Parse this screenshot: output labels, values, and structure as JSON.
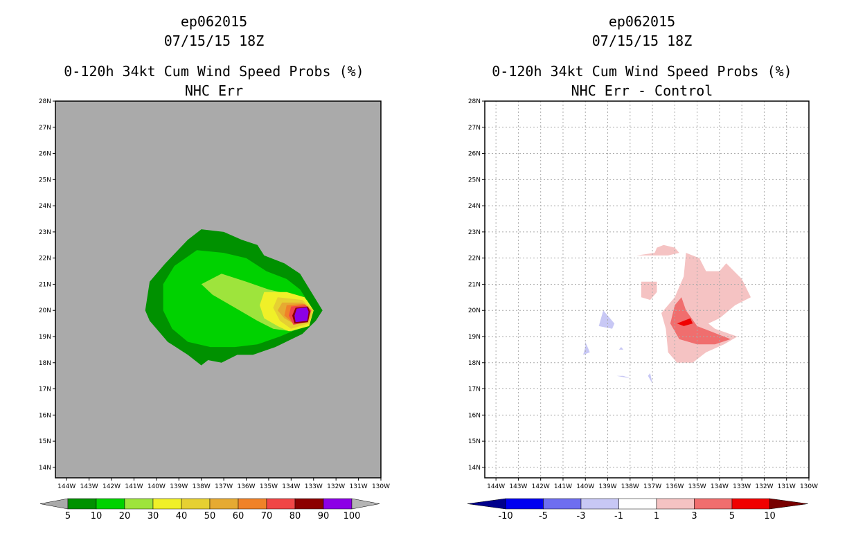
{
  "chart_data": [
    {
      "type": "heatmap",
      "storm": "ep062015",
      "datetime": "07/15/15 18Z",
      "title": "0-120h 34kt Cum Wind Speed Probs (%)",
      "subtitle": "NHC Err",
      "x_ticks": [
        "144W",
        "143W",
        "142W",
        "141W",
        "140W",
        "139W",
        "138W",
        "137W",
        "136W",
        "135W",
        "134W",
        "133W",
        "132W",
        "131W",
        "130W"
      ],
      "y_ticks": [
        "28N",
        "27N",
        "26N",
        "25N",
        "24N",
        "23N",
        "22N",
        "21N",
        "20N",
        "19N",
        "18N",
        "17N",
        "16N",
        "15N",
        "14N"
      ],
      "xlim": [
        -144.5,
        -130.0
      ],
      "ylim": [
        13.6,
        28.0
      ],
      "background_color": "#aaaaaa",
      "levels": [
        5,
        10,
        20,
        30,
        40,
        50,
        60,
        70,
        80,
        90,
        100
      ],
      "level_labels": [
        "5",
        "10",
        "20",
        "30",
        "40",
        "50",
        "60",
        "70",
        "80",
        "90",
        "100"
      ],
      "colors": [
        "#a9a9a9",
        "#009100",
        "#00d200",
        "#9ee43c",
        "#f0f028",
        "#e6d032",
        "#e6aa32",
        "#f08228",
        "#f04646",
        "#8c0000",
        "#8c00e6",
        "#b4b4b4"
      ],
      "contours": [
        {
          "min": 5,
          "points": [
            [
              -138,
              23.1
            ],
            [
              -137,
              23.0
            ],
            [
              -136.2,
              22.7
            ],
            [
              -135.5,
              22.5
            ],
            [
              -135.2,
              22.1
            ],
            [
              -134.3,
              21.8
            ],
            [
              -133.6,
              21.4
            ],
            [
              -133.1,
              20.7
            ],
            [
              -132.6,
              20.0
            ],
            [
              -132.9,
              19.6
            ],
            [
              -133.5,
              19.1
            ],
            [
              -134.7,
              18.6
            ],
            [
              -135.7,
              18.3
            ],
            [
              -136.4,
              18.3
            ],
            [
              -137.1,
              18.0
            ],
            [
              -137.7,
              18.1
            ],
            [
              -138.0,
              17.9
            ],
            [
              -138.6,
              18.3
            ],
            [
              -139.5,
              18.8
            ],
            [
              -140.3,
              19.6
            ],
            [
              -140.5,
              20.0
            ],
            [
              -140.3,
              21.1
            ],
            [
              -139.6,
              21.8
            ],
            [
              -138.6,
              22.7
            ]
          ]
        },
        {
          "min": 10,
          "points": [
            [
              -138.2,
              22.3
            ],
            [
              -137.0,
              22.2
            ],
            [
              -136.0,
              22.0
            ],
            [
              -135.1,
              21.5
            ],
            [
              -134.2,
              21.2
            ],
            [
              -133.6,
              20.8
            ],
            [
              -133.0,
              20.0
            ],
            [
              -133.4,
              19.4
            ],
            [
              -134.5,
              19.0
            ],
            [
              -135.5,
              18.7
            ],
            [
              -136.5,
              18.6
            ],
            [
              -137.6,
              18.6
            ],
            [
              -138.6,
              18.8
            ],
            [
              -139.3,
              19.3
            ],
            [
              -139.7,
              20.0
            ],
            [
              -139.7,
              21.0
            ],
            [
              -139.2,
              21.7
            ]
          ]
        },
        {
          "min": 20,
          "points": [
            [
              -137.1,
              21.4
            ],
            [
              -136.0,
              21.1
            ],
            [
              -135.0,
              20.8
            ],
            [
              -134.0,
              20.6
            ],
            [
              -133.3,
              20.4
            ],
            [
              -133.0,
              20.0
            ],
            [
              -133.2,
              19.4
            ],
            [
              -134.0,
              19.2
            ],
            [
              -134.8,
              19.3
            ],
            [
              -135.5,
              19.6
            ],
            [
              -136.5,
              20.1
            ],
            [
              -137.5,
              20.6
            ],
            [
              -138.0,
              21.0
            ]
          ]
        },
        {
          "min": 30,
          "points": [
            [
              -135.2,
              20.7
            ],
            [
              -134.2,
              20.7
            ],
            [
              -133.4,
              20.5
            ],
            [
              -133.0,
              20.0
            ],
            [
              -133.2,
              19.4
            ],
            [
              -134.1,
              19.2
            ],
            [
              -134.6,
              19.4
            ],
            [
              -135.2,
              19.7
            ],
            [
              -135.4,
              20.2
            ]
          ]
        },
        {
          "min": 40,
          "points": [
            [
              -134.6,
              20.5
            ],
            [
              -133.5,
              20.4
            ],
            [
              -133.0,
              20.0
            ],
            [
              -133.2,
              19.5
            ],
            [
              -134.0,
              19.3
            ],
            [
              -134.5,
              19.6
            ],
            [
              -134.8,
              20.1
            ]
          ]
        },
        {
          "min": 50,
          "points": [
            [
              -134.4,
              20.3
            ],
            [
              -133.5,
              20.3
            ],
            [
              -133.1,
              20.0
            ],
            [
              -133.2,
              19.6
            ],
            [
              -133.9,
              19.5
            ],
            [
              -134.3,
              19.7
            ],
            [
              -134.6,
              20.0
            ]
          ]
        },
        {
          "min": 60,
          "points": [
            [
              -134.2,
              20.2
            ],
            [
              -133.4,
              20.25
            ],
            [
              -133.1,
              20.0
            ],
            [
              -133.3,
              19.6
            ],
            [
              -133.9,
              19.5
            ],
            [
              -134.3,
              19.8
            ]
          ]
        },
        {
          "min": 70,
          "points": [
            [
              -134.0,
              20.15
            ],
            [
              -133.35,
              20.2
            ],
            [
              -133.1,
              20.0
            ],
            [
              -133.3,
              19.55
            ],
            [
              -133.9,
              19.45
            ],
            [
              -134.1,
              19.8
            ]
          ]
        },
        {
          "min": 80,
          "points": [
            [
              -133.8,
              20.1
            ],
            [
              -133.25,
              20.15
            ],
            [
              -133.15,
              19.95
            ],
            [
              -133.25,
              19.55
            ],
            [
              -133.85,
              19.5
            ],
            [
              -133.95,
              19.8
            ]
          ]
        },
        {
          "min": 90,
          "points": [
            [
              -133.75,
              20.07
            ],
            [
              -133.3,
              20.12
            ],
            [
              -133.22,
              19.95
            ],
            [
              -133.28,
              19.6
            ],
            [
              -133.8,
              19.55
            ],
            [
              -133.85,
              19.8
            ]
          ]
        }
      ]
    },
    {
      "type": "heatmap",
      "storm": "ep062015",
      "datetime": "07/15/15 18Z",
      "title": "0-120h 34kt Cum Wind Speed Probs (%)",
      "subtitle": "NHC Err - Control",
      "x_ticks": [
        "144W",
        "143W",
        "142W",
        "141W",
        "140W",
        "139W",
        "138W",
        "137W",
        "136W",
        "135W",
        "134W",
        "133W",
        "132W",
        "131W",
        "130W"
      ],
      "y_ticks": [
        "28N",
        "27N",
        "26N",
        "25N",
        "24N",
        "23N",
        "22N",
        "21N",
        "20N",
        "19N",
        "18N",
        "17N",
        "16N",
        "15N",
        "14N"
      ],
      "xlim": [
        -144.5,
        -130.0
      ],
      "ylim": [
        13.6,
        28.0
      ],
      "background_color": "#ffffff",
      "grid": true,
      "levels": [
        -10,
        -5,
        -3,
        -1,
        1,
        3,
        5,
        10
      ],
      "level_labels": [
        "-10",
        "-5",
        "-3",
        "-1",
        "1",
        "3",
        "5",
        "10"
      ],
      "colors": [
        "#00008c",
        "#0000f0",
        "#6e6ef0",
        "#c8c8f5",
        "#ffffff",
        "#f5c3c3",
        "#f06e6e",
        "#f00000",
        "#780000"
      ],
      "contours": [
        {
          "min": 1,
          "points": [
            [
              -136.5,
              22.5
            ],
            [
              -136,
              22.4
            ],
            [
              -135.8,
              22.2
            ],
            [
              -136.3,
              22.1
            ],
            [
              -137.2,
              22.1
            ],
            [
              -137.7,
              22.1
            ],
            [
              -136.9,
              22.2
            ],
            [
              -136.8,
              22.4
            ]
          ]
        },
        {
          "min": 1,
          "points": [
            [
              -135.5,
              22.2
            ],
            [
              -134.9,
              22.0
            ],
            [
              -134.6,
              21.5
            ],
            [
              -134.0,
              21.5
            ],
            [
              -133.7,
              21.8
            ],
            [
              -133.0,
              21.2
            ],
            [
              -132.6,
              20.5
            ],
            [
              -133.3,
              20.2
            ],
            [
              -134.0,
              19.7
            ],
            [
              -134.5,
              19.5
            ],
            [
              -134.2,
              19.3
            ],
            [
              -133.2,
              19.0
            ],
            [
              -133.8,
              18.7
            ],
            [
              -134.6,
              18.4
            ],
            [
              -135.2,
              18.0
            ],
            [
              -135.9,
              18.0
            ],
            [
              -136.3,
              18.4
            ],
            [
              -136.4,
              19.3
            ],
            [
              -136.6,
              19.9
            ],
            [
              -136.0,
              20.5
            ],
            [
              -135.6,
              21.3
            ]
          ]
        },
        {
          "min": 1,
          "points": [
            [
              -136.8,
              21.1
            ],
            [
              -137.5,
              21.1
            ],
            [
              -137.5,
              20.5
            ],
            [
              -137.1,
              20.4
            ],
            [
              -136.8,
              20.7
            ]
          ]
        },
        {
          "min": 3,
          "points": [
            [
              -135.7,
              20.5
            ],
            [
              -135.5,
              20.0
            ],
            [
              -135.0,
              19.4
            ],
            [
              -134.1,
              19.1
            ],
            [
              -133.5,
              18.9
            ],
            [
              -134.2,
              18.7
            ],
            [
              -135.0,
              18.7
            ],
            [
              -135.8,
              18.9
            ],
            [
              -136.2,
              19.5
            ],
            [
              -136.0,
              20.2
            ]
          ]
        },
        {
          "min": 5,
          "points": [
            [
              -135.3,
              19.7
            ],
            [
              -135.2,
              19.5
            ],
            [
              -135.6,
              19.4
            ],
            [
              -135.9,
              19.5
            ],
            [
              -135.6,
              19.6
            ]
          ]
        },
        {
          "min": -3,
          "points": [
            [
              -139.2,
              20.0
            ],
            [
              -138.7,
              19.5
            ],
            [
              -138.8,
              19.3
            ],
            [
              -139.4,
              19.4
            ]
          ]
        },
        {
          "min": -3,
          "points": [
            [
              -140.0,
              18.8
            ],
            [
              -139.8,
              18.4
            ],
            [
              -140.1,
              18.3
            ],
            [
              -140.0,
              18.6
            ]
          ]
        },
        {
          "min": -3,
          "points": [
            [
              -138.4,
              18.6
            ],
            [
              -138.3,
              18.5
            ],
            [
              -138.5,
              18.5
            ]
          ]
        },
        {
          "min": -3,
          "points": [
            [
              -138.6,
              17.5
            ],
            [
              -138.0,
              17.4
            ],
            [
              -138.3,
              17.5
            ]
          ]
        },
        {
          "min": -3,
          "points": [
            [
              -137.2,
              17.5
            ],
            [
              -137.0,
              17.2
            ],
            [
              -137.1,
              17.6
            ]
          ]
        }
      ]
    }
  ]
}
